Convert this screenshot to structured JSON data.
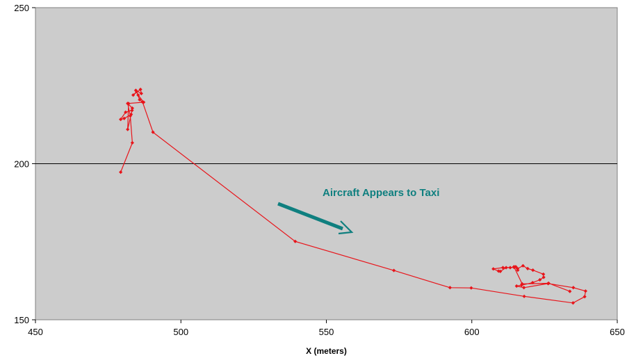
{
  "chart_data": {
    "type": "line",
    "title": "",
    "xlabel": "X (meters)",
    "ylabel": "",
    "xlim": [
      450,
      650
    ],
    "ylim": [
      150,
      250
    ],
    "xticks": [
      450,
      500,
      550,
      600,
      650
    ],
    "yticks": [
      150,
      200,
      250
    ],
    "grid": "horizontal",
    "plot_background": "#cccccc",
    "series": [
      {
        "color": "#e8141a",
        "marker": "diamond",
        "points": [
          [
            479.3,
            197.3
          ],
          [
            483.3,
            206.7
          ],
          [
            482.6,
            215.3
          ],
          [
            481.7,
            219.3
          ],
          [
            483.3,
            217.8
          ],
          [
            482.9,
            215.8
          ],
          [
            480.5,
            214.5
          ],
          [
            479.3,
            214.2
          ],
          [
            481.0,
            216.5
          ],
          [
            483.2,
            217.1
          ],
          [
            481.7,
            211.0
          ],
          [
            482.0,
            219.3
          ],
          [
            487.2,
            219.7
          ],
          [
            485.3,
            222.0
          ],
          [
            484.5,
            223.5
          ],
          [
            486.4,
            222.5
          ],
          [
            486.1,
            223.8
          ],
          [
            483.6,
            222.0
          ],
          [
            484.8,
            223.1
          ],
          [
            485.8,
            220.5
          ],
          [
            486.8,
            219.8
          ],
          [
            490.4,
            210.1
          ],
          [
            539.3,
            175.1
          ],
          [
            573.2,
            165.8
          ],
          [
            592.5,
            160.3
          ],
          [
            599.8,
            160.2
          ],
          [
            618.0,
            157.5
          ],
          [
            634.8,
            155.4
          ],
          [
            638.8,
            157.4
          ],
          [
            639.1,
            159.2
          ],
          [
            634.9,
            160.3
          ],
          [
            626.2,
            161.6
          ],
          [
            617.9,
            160.3
          ],
          [
            615.4,
            160.8
          ],
          [
            617.1,
            161.1
          ],
          [
            620.9,
            161.9
          ],
          [
            623.4,
            162.8
          ],
          [
            624.7,
            163.6
          ],
          [
            624.6,
            164.6
          ],
          [
            621.0,
            165.9
          ],
          [
            619.2,
            166.4
          ],
          [
            617.6,
            167.3
          ],
          [
            615.7,
            166.4
          ],
          [
            615.8,
            165.9
          ],
          [
            615.1,
            167.0
          ],
          [
            613.2,
            166.7
          ],
          [
            611.8,
            166.7
          ],
          [
            609.8,
            165.5
          ],
          [
            609.2,
            165.6
          ],
          [
            607.4,
            166.3
          ],
          [
            610.7,
            166.7
          ],
          [
            614.5,
            166.8
          ],
          [
            614.5,
            167.0
          ],
          [
            617.3,
            161.5
          ],
          [
            626.4,
            161.7
          ],
          [
            633.7,
            159.1
          ]
        ]
      }
    ],
    "annotations": [
      {
        "text": "Aircraft Appears to Taxi",
        "color": "#0f7f7f"
      }
    ]
  }
}
